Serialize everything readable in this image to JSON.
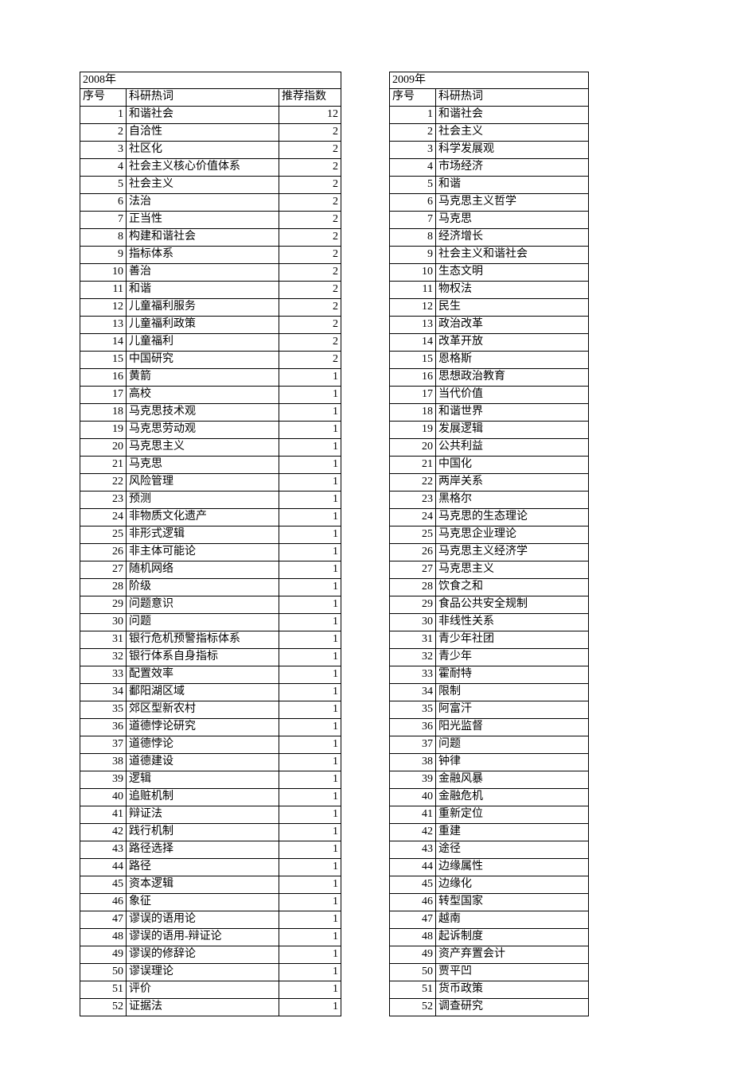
{
  "left": {
    "year": "2008年",
    "columns": {
      "seq": "序号",
      "term": "科研热词",
      "idx": "推荐指数"
    },
    "rows": [
      {
        "n": 1,
        "t": "和谐社会",
        "i": 12
      },
      {
        "n": 2,
        "t": "自洽性",
        "i": 2
      },
      {
        "n": 3,
        "t": "社区化",
        "i": 2
      },
      {
        "n": 4,
        "t": "社会主义核心价值体系",
        "i": 2
      },
      {
        "n": 5,
        "t": "社会主义",
        "i": 2
      },
      {
        "n": 6,
        "t": "法治",
        "i": 2
      },
      {
        "n": 7,
        "t": "正当性",
        "i": 2
      },
      {
        "n": 8,
        "t": "构建和谐社会",
        "i": 2
      },
      {
        "n": 9,
        "t": "指标体系",
        "i": 2
      },
      {
        "n": 10,
        "t": "善治",
        "i": 2
      },
      {
        "n": 11,
        "t": "和谐",
        "i": 2
      },
      {
        "n": 12,
        "t": "儿童福利服务",
        "i": 2
      },
      {
        "n": 13,
        "t": "儿童福利政策",
        "i": 2
      },
      {
        "n": 14,
        "t": "儿童福利",
        "i": 2
      },
      {
        "n": 15,
        "t": "中国研究",
        "i": 2
      },
      {
        "n": 16,
        "t": "黄箭",
        "i": 1
      },
      {
        "n": 17,
        "t": "高校",
        "i": 1
      },
      {
        "n": 18,
        "t": "马克思技术观",
        "i": 1
      },
      {
        "n": 19,
        "t": "马克思劳动观",
        "i": 1
      },
      {
        "n": 20,
        "t": "马克思主义",
        "i": 1
      },
      {
        "n": 21,
        "t": "马克思",
        "i": 1
      },
      {
        "n": 22,
        "t": "风险管理",
        "i": 1
      },
      {
        "n": 23,
        "t": "预测",
        "i": 1
      },
      {
        "n": 24,
        "t": "非物质文化遗产",
        "i": 1
      },
      {
        "n": 25,
        "t": "非形式逻辑",
        "i": 1
      },
      {
        "n": 26,
        "t": "非主体可能论",
        "i": 1
      },
      {
        "n": 27,
        "t": "随机网络",
        "i": 1
      },
      {
        "n": 28,
        "t": "阶级",
        "i": 1
      },
      {
        "n": 29,
        "t": "问题意识",
        "i": 1
      },
      {
        "n": 30,
        "t": "问题",
        "i": 1
      },
      {
        "n": 31,
        "t": "银行危机预警指标体系",
        "i": 1
      },
      {
        "n": 32,
        "t": "银行体系自身指标",
        "i": 1
      },
      {
        "n": 33,
        "t": "配置效率",
        "i": 1
      },
      {
        "n": 34,
        "t": "鄱阳湖区域",
        "i": 1
      },
      {
        "n": 35,
        "t": "郊区型新农村",
        "i": 1
      },
      {
        "n": 36,
        "t": "道德悖论研究",
        "i": 1
      },
      {
        "n": 37,
        "t": "道德悖论",
        "i": 1
      },
      {
        "n": 38,
        "t": "道德建设",
        "i": 1
      },
      {
        "n": 39,
        "t": "逻辑",
        "i": 1
      },
      {
        "n": 40,
        "t": "追赃机制",
        "i": 1
      },
      {
        "n": 41,
        "t": "辩证法",
        "i": 1
      },
      {
        "n": 42,
        "t": "践行机制",
        "i": 1
      },
      {
        "n": 43,
        "t": "路径选择",
        "i": 1
      },
      {
        "n": 44,
        "t": "路径",
        "i": 1
      },
      {
        "n": 45,
        "t": "资本逻辑",
        "i": 1
      },
      {
        "n": 46,
        "t": "象征",
        "i": 1
      },
      {
        "n": 47,
        "t": "谬误的语用论",
        "i": 1
      },
      {
        "n": 48,
        "t": "谬误的语用-辩证论",
        "i": 1
      },
      {
        "n": 49,
        "t": "谬误的修辞论",
        "i": 1
      },
      {
        "n": 50,
        "t": "谬误理论",
        "i": 1
      },
      {
        "n": 51,
        "t": "评价",
        "i": 1
      },
      {
        "n": 52,
        "t": "证据法",
        "i": 1
      }
    ]
  },
  "right": {
    "year": "2009年",
    "columns": {
      "seq": "序号",
      "term": "科研热词"
    },
    "rows": [
      {
        "n": 1,
        "t": "和谐社会"
      },
      {
        "n": 2,
        "t": "社会主义"
      },
      {
        "n": 3,
        "t": "科学发展观"
      },
      {
        "n": 4,
        "t": "市场经济"
      },
      {
        "n": 5,
        "t": "和谐"
      },
      {
        "n": 6,
        "t": "马克思主义哲学"
      },
      {
        "n": 7,
        "t": "马克思"
      },
      {
        "n": 8,
        "t": "经济增长"
      },
      {
        "n": 9,
        "t": "社会主义和谐社会"
      },
      {
        "n": 10,
        "t": "生态文明"
      },
      {
        "n": 11,
        "t": "物权法"
      },
      {
        "n": 12,
        "t": "民生"
      },
      {
        "n": 13,
        "t": "政治改革"
      },
      {
        "n": 14,
        "t": "改革开放"
      },
      {
        "n": 15,
        "t": "恩格斯"
      },
      {
        "n": 16,
        "t": "思想政治教育"
      },
      {
        "n": 17,
        "t": "当代价值"
      },
      {
        "n": 18,
        "t": "和谐世界"
      },
      {
        "n": 19,
        "t": "发展逻辑"
      },
      {
        "n": 20,
        "t": "公共利益"
      },
      {
        "n": 21,
        "t": "中国化"
      },
      {
        "n": 22,
        "t": "两岸关系"
      },
      {
        "n": 23,
        "t": "黑格尔"
      },
      {
        "n": 24,
        "t": "马克思的生态理论"
      },
      {
        "n": 25,
        "t": "马克思企业理论"
      },
      {
        "n": 26,
        "t": "马克思主义经济学"
      },
      {
        "n": 27,
        "t": "马克思主义"
      },
      {
        "n": 28,
        "t": "饮食之和"
      },
      {
        "n": 29,
        "t": "食品公共安全规制"
      },
      {
        "n": 30,
        "t": "非线性关系"
      },
      {
        "n": 31,
        "t": "青少年社团"
      },
      {
        "n": 32,
        "t": "青少年"
      },
      {
        "n": 33,
        "t": "霍耐特"
      },
      {
        "n": 34,
        "t": "限制"
      },
      {
        "n": 35,
        "t": "阿富汗"
      },
      {
        "n": 36,
        "t": "阳光监督"
      },
      {
        "n": 37,
        "t": "问题"
      },
      {
        "n": 38,
        "t": "钟律"
      },
      {
        "n": 39,
        "t": "金融风暴"
      },
      {
        "n": 40,
        "t": "金融危机"
      },
      {
        "n": 41,
        "t": "重新定位"
      },
      {
        "n": 42,
        "t": "重建"
      },
      {
        "n": 43,
        "t": "途径"
      },
      {
        "n": 44,
        "t": "边缘属性"
      },
      {
        "n": 45,
        "t": "边缘化"
      },
      {
        "n": 46,
        "t": "转型国家"
      },
      {
        "n": 47,
        "t": "越南"
      },
      {
        "n": 48,
        "t": "起诉制度"
      },
      {
        "n": 49,
        "t": "资产弃置会计"
      },
      {
        "n": 50,
        "t": "贾平凹"
      },
      {
        "n": 51,
        "t": "货币政策"
      },
      {
        "n": 52,
        "t": "调查研究"
      }
    ]
  }
}
